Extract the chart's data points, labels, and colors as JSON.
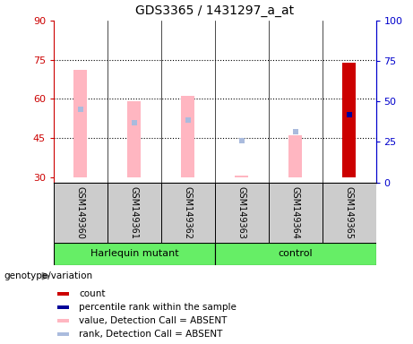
{
  "title": "GDS3365 / 1431297_a_at",
  "samples": [
    "GSM149360",
    "GSM149361",
    "GSM149362",
    "GSM149363",
    "GSM149364",
    "GSM149365"
  ],
  "ylim_left": [
    28,
    90
  ],
  "ylim_right": [
    0,
    100
  ],
  "yticks_left": [
    30,
    45,
    60,
    75,
    90
  ],
  "yticks_right": [
    0,
    25,
    50,
    75,
    100
  ],
  "hlines": [
    45,
    60,
    75
  ],
  "value_bar_bottoms": [
    30,
    30,
    30,
    30,
    30,
    30
  ],
  "value_bar_tops": [
    71,
    59,
    61,
    30.5,
    46,
    74
  ],
  "rank_marker_vals": [
    56,
    51,
    52,
    44,
    47.5,
    54
  ],
  "absent_indices": [
    0,
    1,
    2,
    3,
    4
  ],
  "present_indices": [
    5
  ],
  "absent_bar_color": "#FFB6C1",
  "present_bar_color": "#CC0000",
  "absent_rank_color": "#AABBDD",
  "present_rank_color": "#000099",
  "left_axis_color": "#CC0000",
  "right_axis_color": "#0000CC",
  "group1_name": "Harlequin mutant",
  "group1_indices": [
    0,
    1,
    2
  ],
  "group2_name": "control",
  "group2_indices": [
    3,
    4,
    5
  ],
  "group_color": "#66EE66",
  "sample_box_color": "#CCCCCC",
  "legend_items": [
    {
      "label": "count",
      "color": "#CC0000"
    },
    {
      "label": "percentile rank within the sample",
      "color": "#000099"
    },
    {
      "label": "value, Detection Call = ABSENT",
      "color": "#FFB6C1"
    },
    {
      "label": "rank, Detection Call = ABSENT",
      "color": "#AABBDD"
    }
  ]
}
